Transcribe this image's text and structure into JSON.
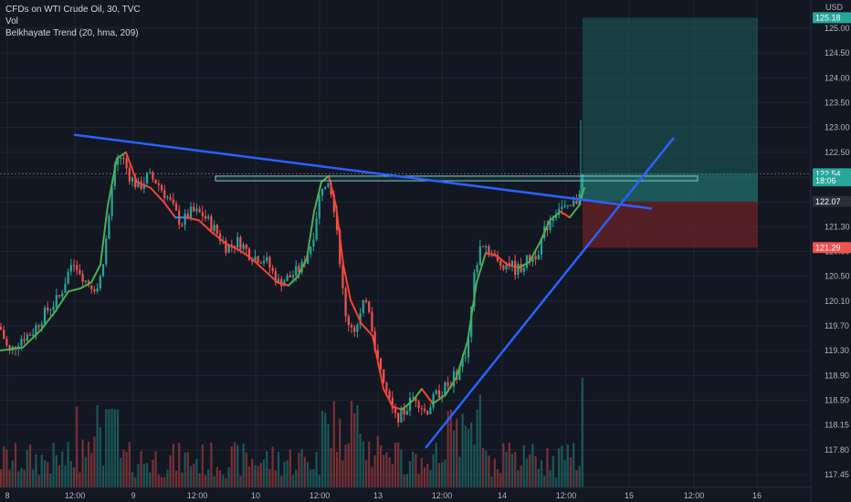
{
  "legend": {
    "symbol": "CFDs on WTI Crude Oil, 30, TVC",
    "volume": "Vol",
    "indicator": "Belkhayate Trend (20, hma, 209)"
  },
  "colors": {
    "background": "#131722",
    "grid": "#1f2430",
    "up": "#26a69a",
    "down": "#ef5350",
    "trendline": "#2962ff",
    "profit_zone": "#1b5e5a",
    "loss_zone": "#6b2127"
  },
  "chart_data": {
    "type": "candlestick",
    "currency_label": "USD",
    "y_ticks": [
      "125.00",
      "124.50",
      "124.00",
      "123.50",
      "123.00",
      "122.50",
      "122.10",
      "121.70",
      "121.30",
      "120.90",
      "120.50",
      "120.10",
      "119.70",
      "119.30",
      "118.90",
      "118.50",
      "118.15",
      "117.80",
      "117.45"
    ],
    "x_ticks": [
      "8",
      "12:00",
      "9",
      "12:00",
      "10",
      "12:00",
      "13",
      "12:00",
      "14",
      "12:00",
      "15",
      "12:00",
      "16"
    ],
    "price_badges": [
      {
        "label": "125.18",
        "value": 125.18,
        "color": "#26a69a"
      },
      {
        "label": "122.54",
        "value": 122.54,
        "color": "#26a69a"
      },
      {
        "label": "18:06",
        "value": 122.42,
        "color": "#26a69a"
      },
      {
        "label": "122.07",
        "value": 122.07,
        "color": "#2a2e39"
      },
      {
        "label": "121.29",
        "value": 121.29,
        "color": "#ef5350"
      }
    ],
    "position": {
      "entry": 122.07,
      "target": 125.18,
      "stop": 121.29
    },
    "resistance_zone": {
      "from": 122.42,
      "to": 122.5
    },
    "trendlines": [
      {
        "name": "descending",
        "from_price": 123.2,
        "to_price": 121.95
      },
      {
        "name": "ascending",
        "from_price": 117.9,
        "to_price": 123.15
      }
    ],
    "price_path": [
      [
        0,
        119.95
      ],
      [
        10,
        119.5
      ],
      [
        22,
        119.75
      ],
      [
        35,
        119.85
      ],
      [
        50,
        120.2
      ],
      [
        65,
        120.45
      ],
      [
        80,
        121.1
      ],
      [
        95,
        120.7
      ],
      [
        108,
        120.6
      ],
      [
        118,
        121.6
      ],
      [
        124,
        122.55
      ],
      [
        133,
        122.85
      ],
      [
        142,
        122.5
      ],
      [
        152,
        122.3
      ],
      [
        162,
        122.5
      ],
      [
        172,
        122.4
      ],
      [
        185,
        122.1
      ],
      [
        198,
        121.7
      ],
      [
        210,
        121.9
      ],
      [
        222,
        121.85
      ],
      [
        235,
        121.6
      ],
      [
        248,
        121.3
      ],
      [
        262,
        121.4
      ],
      [
        275,
        121.15
      ],
      [
        290,
        121.1
      ],
      [
        305,
        120.7
      ],
      [
        318,
        120.8
      ],
      [
        330,
        120.95
      ],
      [
        342,
        121.4
      ],
      [
        352,
        122.35
      ],
      [
        360,
        122.5
      ],
      [
        368,
        121.8
      ],
      [
        378,
        120.1
      ],
      [
        390,
        119.9
      ],
      [
        402,
        120.5
      ],
      [
        412,
        119.5
      ],
      [
        422,
        118.9
      ],
      [
        432,
        118.4
      ],
      [
        442,
        118.5
      ],
      [
        454,
        118.8
      ],
      [
        466,
        118.5
      ],
      [
        478,
        118.8
      ],
      [
        490,
        118.95
      ],
      [
        502,
        119.2
      ],
      [
        512,
        119.6
      ],
      [
        520,
        120.9
      ],
      [
        528,
        121.4
      ],
      [
        538,
        121.2
      ],
      [
        546,
        121.0
      ],
      [
        556,
        121.05
      ],
      [
        566,
        120.9
      ],
      [
        576,
        121.05
      ],
      [
        588,
        121.2
      ],
      [
        600,
        121.7
      ],
      [
        612,
        122.0
      ],
      [
        622,
        121.9
      ],
      [
        632,
        122.1
      ],
      [
        638,
        122.5
      ]
    ],
    "trend_line": [
      [
        0,
        119.55
      ],
      [
        25,
        119.6
      ],
      [
        45,
        119.9
      ],
      [
        60,
        120.2
      ],
      [
        75,
        120.55
      ],
      [
        88,
        120.6
      ],
      [
        100,
        120.7
      ],
      [
        110,
        121.0
      ],
      [
        118,
        122.0
      ],
      [
        128,
        122.8
      ],
      [
        138,
        122.9
      ],
      [
        150,
        122.4
      ],
      [
        165,
        122.3
      ],
      [
        180,
        122.05
      ],
      [
        192,
        121.8
      ],
      [
        205,
        121.8
      ],
      [
        218,
        121.75
      ],
      [
        232,
        121.55
      ],
      [
        248,
        121.35
      ],
      [
        262,
        121.25
      ],
      [
        276,
        121.1
      ],
      [
        290,
        120.9
      ],
      [
        304,
        120.7
      ],
      [
        316,
        120.65
      ],
      [
        326,
        120.8
      ],
      [
        336,
        121.1
      ],
      [
        344,
        121.9
      ],
      [
        352,
        122.4
      ],
      [
        360,
        122.5
      ],
      [
        368,
        122.0
      ],
      [
        376,
        121.0
      ],
      [
        384,
        120.4
      ],
      [
        396,
        120.0
      ],
      [
        408,
        119.8
      ],
      [
        420,
        118.9
      ],
      [
        430,
        118.6
      ],
      [
        440,
        118.55
      ],
      [
        452,
        118.7
      ],
      [
        462,
        118.9
      ],
      [
        474,
        118.65
      ],
      [
        488,
        118.8
      ],
      [
        500,
        119.1
      ],
      [
        512,
        119.7
      ],
      [
        522,
        120.7
      ],
      [
        532,
        121.2
      ],
      [
        544,
        121.15
      ],
      [
        556,
        121.0
      ],
      [
        568,
        120.95
      ],
      [
        580,
        121.05
      ],
      [
        592,
        121.4
      ],
      [
        602,
        121.75
      ],
      [
        614,
        121.9
      ],
      [
        624,
        121.8
      ],
      [
        634,
        122.0
      ],
      [
        640,
        122.3
      ]
    ]
  }
}
